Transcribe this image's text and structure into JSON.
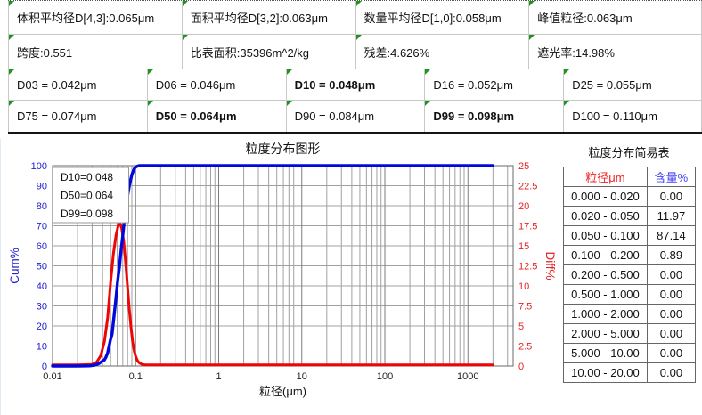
{
  "colors": {
    "cum_blue": "#0008dd",
    "diff_red": "#ee0505",
    "left_axis_text": "#2323cc",
    "right_axis_text": "#e32222",
    "grid_minor": "#a0a0a0",
    "grid_major": "#7d7d7d",
    "plot_border": "#686868",
    "cell_marker_green": "#1f941f",
    "range_header_red": "#ee2222",
    "content_header_blue": "#4545ee"
  },
  "stats_table": {
    "rows": [
      [
        "体积平均径D[4,3]:0.065μm",
        "面积平均径D[3,2]:0.063μm",
        "数量平均径D[1,0]:0.058μm",
        "峰值粒径:0.063μm"
      ],
      [
        "跨度:0.551",
        "比表面积:35396m^2/kg",
        "残差:4.626%",
        "遮光率:14.98%"
      ]
    ]
  },
  "percentile_table": {
    "rows": [
      [
        {
          "text": "D03 = 0.042μm",
          "bold": false
        },
        {
          "text": "D06 = 0.046μm",
          "bold": false
        },
        {
          "text": "D10 = 0.048μm",
          "bold": true
        },
        {
          "text": "D16 = 0.052μm",
          "bold": false
        },
        {
          "text": "D25 = 0.055μm",
          "bold": false
        }
      ],
      [
        {
          "text": "D75 = 0.074μm",
          "bold": false
        },
        {
          "text": "D50 = 0.064μm",
          "bold": true
        },
        {
          "text": "D90 = 0.084μm",
          "bold": false
        },
        {
          "text": "D99 = 0.098μm",
          "bold": true
        },
        {
          "text": "D100 = 0.110μm",
          "bold": false
        }
      ]
    ]
  },
  "chart_data": {
    "type": "line",
    "title": "粒度分布图形",
    "xlabel": "粒径(μm)",
    "ylabel_left": "Cum%",
    "ylabel_right": "Diff%",
    "x_scale": "log",
    "xlim": [
      0.01,
      3500
    ],
    "x_tick_values": [
      0.01,
      0.1,
      1,
      10,
      100,
      1000
    ],
    "x_tick_labels": [
      "0.01",
      "0.1",
      "1",
      "10",
      "100",
      "1000"
    ],
    "ylim_left": [
      0,
      100
    ],
    "left_tick_values": [
      0,
      10,
      20,
      30,
      40,
      50,
      60,
      70,
      80,
      90,
      100
    ],
    "ylim_right": [
      0,
      25
    ],
    "right_tick_values": [
      0,
      2.5,
      5,
      7.5,
      10,
      12.5,
      15,
      17.5,
      20,
      22.5,
      25
    ],
    "right_tick_labels": [
      "0",
      "2.5",
      "5",
      "7.5",
      "10",
      "12.5",
      "15",
      "17.5",
      "20",
      "22.5",
      "25"
    ],
    "grid": true,
    "legend_position": "top-left",
    "annotation_lines": [
      "D10=0.048",
      "D50=0.064",
      "D99=0.098"
    ],
    "series": [
      {
        "name": "Diff%",
        "axis": "right",
        "color": "#ee0505",
        "points": [
          [
            0.01,
            0.15
          ],
          [
            0.02,
            0.15
          ],
          [
            0.03,
            0.2
          ],
          [
            0.034,
            0.5
          ],
          [
            0.038,
            1.3
          ],
          [
            0.042,
            3
          ],
          [
            0.046,
            6
          ],
          [
            0.05,
            10.5
          ],
          [
            0.054,
            14
          ],
          [
            0.058,
            16.3
          ],
          [
            0.062,
            17.6
          ],
          [
            0.065,
            17.8
          ],
          [
            0.068,
            17.2
          ],
          [
            0.072,
            15.5
          ],
          [
            0.076,
            12.8
          ],
          [
            0.08,
            9.8
          ],
          [
            0.084,
            7
          ],
          [
            0.088,
            4.8
          ],
          [
            0.092,
            3
          ],
          [
            0.096,
            1.9
          ],
          [
            0.1,
            1.2
          ],
          [
            0.106,
            0.6
          ],
          [
            0.112,
            0.35
          ],
          [
            0.12,
            0.2
          ],
          [
            0.13,
            0.15
          ],
          [
            0.3,
            0.15
          ],
          [
            1,
            0.15
          ],
          [
            10,
            0.15
          ],
          [
            100,
            0.15
          ],
          [
            1000,
            0.15
          ],
          [
            2000,
            0.15
          ]
        ]
      },
      {
        "name": "Cum%",
        "axis": "left",
        "color": "#0008dd",
        "points": [
          [
            0.01,
            0
          ],
          [
            0.02,
            0
          ],
          [
            0.028,
            0.1
          ],
          [
            0.032,
            0.4
          ],
          [
            0.036,
            1.2
          ],
          [
            0.04,
            2.5
          ],
          [
            0.042,
            3
          ],
          [
            0.044,
            4.5
          ],
          [
            0.046,
            6.5
          ],
          [
            0.048,
            10
          ],
          [
            0.05,
            13.5
          ],
          [
            0.052,
            16
          ],
          [
            0.055,
            25
          ],
          [
            0.058,
            34
          ],
          [
            0.061,
            43
          ],
          [
            0.064,
            50
          ],
          [
            0.067,
            58
          ],
          [
            0.07,
            65
          ],
          [
            0.074,
            75
          ],
          [
            0.078,
            82.5
          ],
          [
            0.084,
            90
          ],
          [
            0.09,
            95.5
          ],
          [
            0.094,
            97.5
          ],
          [
            0.098,
            99
          ],
          [
            0.104,
            99.7
          ],
          [
            0.11,
            100
          ],
          [
            0.13,
            100
          ],
          [
            0.3,
            100
          ],
          [
            1,
            100
          ],
          [
            10,
            100
          ],
          [
            100,
            100
          ],
          [
            1000,
            100
          ],
          [
            2000,
            100
          ]
        ]
      }
    ]
  },
  "summary_table": {
    "title": "粒度分布简易表",
    "headers": [
      {
        "text": "粒径μm",
        "color": "#ee2222"
      },
      {
        "text": "含量%",
        "color": "#4545ee"
      }
    ],
    "rows": [
      [
        "0.000 - 0.020",
        "0.00"
      ],
      [
        "0.020 - 0.050",
        "11.97"
      ],
      [
        "0.050 - 0.100",
        "87.14"
      ],
      [
        "0.100 - 0.200",
        "0.89"
      ],
      [
        "0.200 - 0.500",
        "0.00"
      ],
      [
        "0.500 - 1.000",
        "0.00"
      ],
      [
        "1.000 - 2.000",
        "0.00"
      ],
      [
        "2.000 - 5.000",
        "0.00"
      ],
      [
        "5.000 - 10.00",
        "0.00"
      ],
      [
        "10.00 - 20.00",
        "0.00"
      ]
    ]
  }
}
